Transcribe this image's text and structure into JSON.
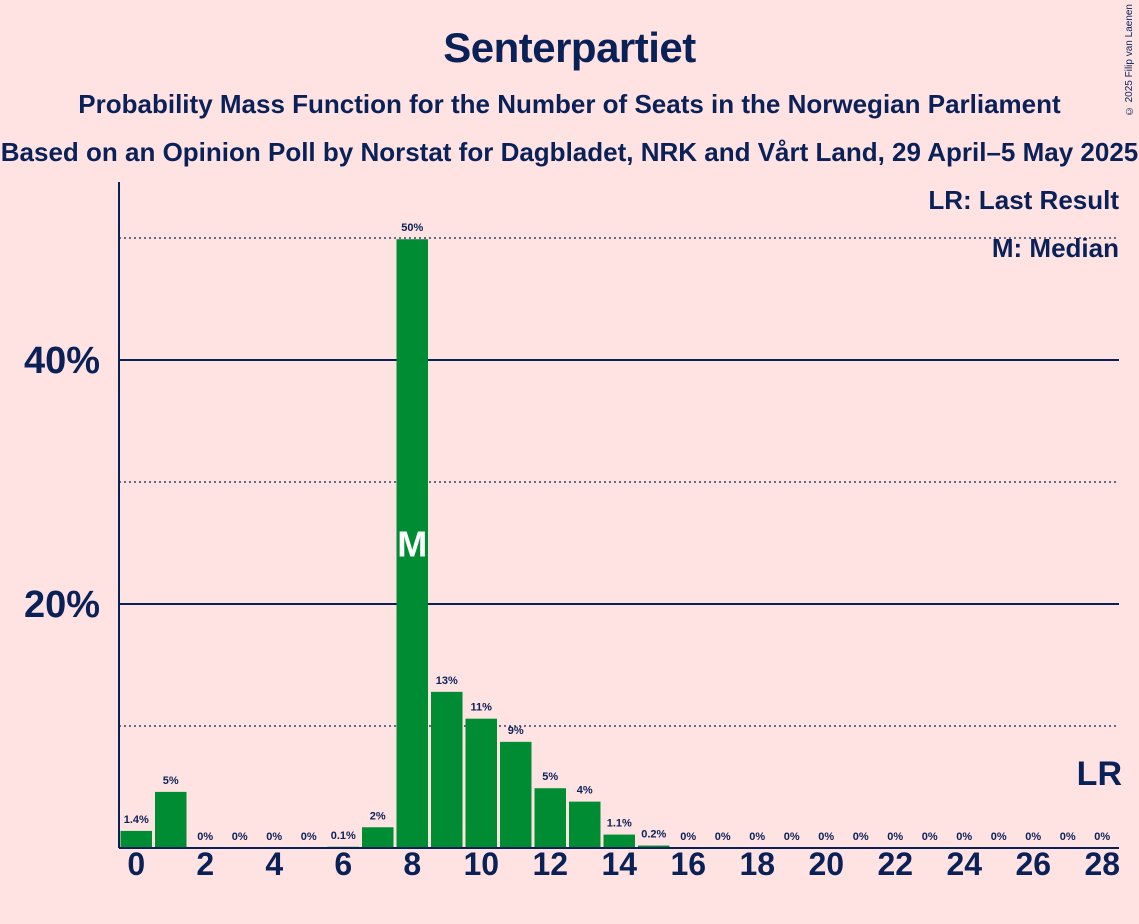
{
  "title": "Senterpartiet",
  "subtitle": "Probability Mass Function for the Number of Seats in the Norwegian Parliament",
  "subtitle2": "Based on an Opinion Poll by Norstat for Dagbladet, NRK and Vårt Land, 29 April–5 May 2025",
  "copyright": "© 2025 Filip van Laenen",
  "legend": {
    "last_result": "LR: Last Result",
    "median": "M: Median"
  },
  "markers": {
    "median_label": "M",
    "last_result_label": "LR"
  },
  "colors": {
    "bar": "#008C32",
    "text": "#0A2158",
    "background": "#FFE2E2"
  },
  "chart_data": {
    "type": "bar",
    "x": [
      0,
      1,
      2,
      3,
      4,
      5,
      6,
      7,
      8,
      9,
      10,
      11,
      12,
      13,
      14,
      15,
      16,
      17,
      18,
      19,
      20,
      21,
      22,
      23,
      24,
      25,
      26,
      27,
      28
    ],
    "values": [
      1.4,
      4.6,
      0,
      0,
      0,
      0,
      0.1,
      1.7,
      49.9,
      12.8,
      10.6,
      8.7,
      4.9,
      3.8,
      1.1,
      0.2,
      0,
      0,
      0,
      0,
      0,
      0,
      0,
      0,
      0,
      0,
      0,
      0,
      0
    ],
    "labels": [
      "1.4%",
      "5%",
      "0%",
      "0%",
      "0%",
      "0%",
      "0.1%",
      "2%",
      "50%",
      "13%",
      "11%",
      "9%",
      "5%",
      "4%",
      "1.1%",
      "0.2%",
      "0%",
      "0%",
      "0%",
      "0%",
      "0%",
      "0%",
      "0%",
      "0%",
      "0%",
      "0%",
      "0%",
      "0%",
      "0%"
    ],
    "x_tick_labels": [
      "0",
      "2",
      "4",
      "6",
      "8",
      "10",
      "12",
      "14",
      "16",
      "18",
      "20",
      "22",
      "24",
      "26",
      "28"
    ],
    "y_tick_labels": [
      {
        "value": 20,
        "label": "20%"
      },
      {
        "value": 40,
        "label": "40%"
      }
    ],
    "ylim": [
      0,
      54
    ],
    "solid_gridlines": [
      20,
      40
    ],
    "dotted_gridlines": [
      10,
      30,
      50
    ],
    "median_seat": 8,
    "last_result_seat": 28,
    "legend_position": "top-right"
  }
}
